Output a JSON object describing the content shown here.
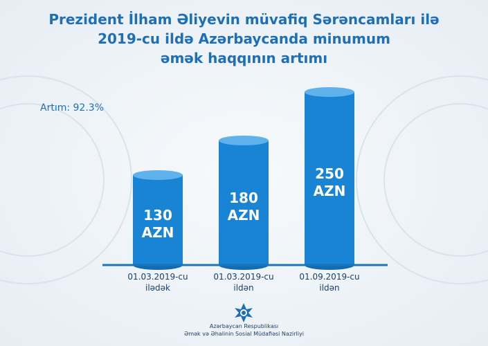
{
  "chart_data": {
    "type": "bar",
    "title": "Prezident İlham Əliyevin müvafiq Sərəncamları ilə\n2019-cu ildə Azərbaycanda minumum\nəmək haqqının artımı",
    "annotation": "Artım: 92.3%",
    "categories": [
      "01.03.2019-cu\nilədək",
      "01.03.2019-cu\nildən",
      "01.09.2019-cu\nildən"
    ],
    "values": [
      130,
      180,
      250
    ],
    "value_labels": [
      "130\nAZN",
      "180\nAZN",
      "250\nAZN"
    ],
    "color": "#1a84d4",
    "footer": [
      "Azərbaycan Respublikası",
      "Əmək və Əhalinin Sosial Müdafiəsi Nazirliyi"
    ]
  }
}
